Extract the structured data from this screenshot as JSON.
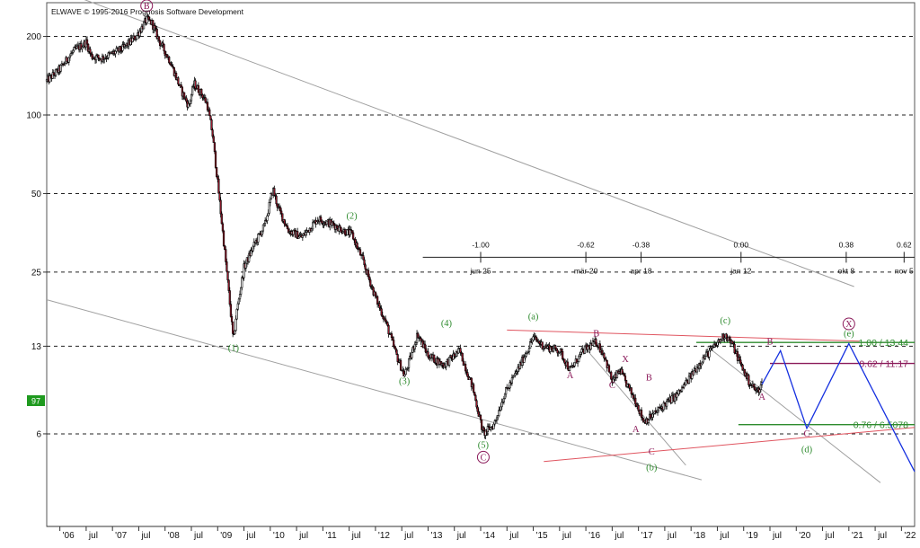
{
  "copyright": "ELWAVE © 1995-2016 Prognosis Software Development",
  "last_price_badge": "97",
  "colors": {
    "up_candle": "#ffffff",
    "down_candle": "#9a1a2e",
    "wick": "#000000",
    "wave_green": "#2e8b2e",
    "wave_purple": "#8b1a5a",
    "projection_blue": "#1530e0",
    "channel_red": "#e05560",
    "channel_gray": "#a0a0a0",
    "fib_green": "#2e8b2e",
    "fib_purple": "#8b1a5a",
    "badge_green": "#1f9a1f"
  },
  "chart_data": {
    "type": "candlestick",
    "y_scale": "log",
    "ylim": [
      3,
      300
    ],
    "y_ticks": [
      200,
      100,
      50,
      25,
      13,
      6
    ],
    "x_start": 2005.75,
    "x_end": 2022.25,
    "x_tick_labels": [
      {
        "t": 2006.0,
        "label": "'06"
      },
      {
        "t": 2006.5,
        "label": "jul"
      },
      {
        "t": 2007.0,
        "label": "'07"
      },
      {
        "t": 2007.5,
        "label": "jul"
      },
      {
        "t": 2008.0,
        "label": "'08"
      },
      {
        "t": 2008.5,
        "label": "jul"
      },
      {
        "t": 2009.0,
        "label": "'09"
      },
      {
        "t": 2009.5,
        "label": "jul"
      },
      {
        "t": 2010.0,
        "label": "'10"
      },
      {
        "t": 2010.5,
        "label": "jul"
      },
      {
        "t": 2011.0,
        "label": "'11"
      },
      {
        "t": 2011.5,
        "label": "jul"
      },
      {
        "t": 2012.0,
        "label": "'12"
      },
      {
        "t": 2012.5,
        "label": "jul"
      },
      {
        "t": 2013.0,
        "label": "'13"
      },
      {
        "t": 2013.5,
        "label": "jul"
      },
      {
        "t": 2014.0,
        "label": "'14"
      },
      {
        "t": 2014.5,
        "label": "jul"
      },
      {
        "t": 2015.0,
        "label": "'15"
      },
      {
        "t": 2015.5,
        "label": "jul"
      },
      {
        "t": 2016.0,
        "label": "'16"
      },
      {
        "t": 2016.5,
        "label": "jul"
      },
      {
        "t": 2017.0,
        "label": "'17"
      },
      {
        "t": 2017.5,
        "label": "jul"
      },
      {
        "t": 2018.0,
        "label": "'18"
      },
      {
        "t": 2018.5,
        "label": "jul"
      },
      {
        "t": 2019.0,
        "label": "'19"
      },
      {
        "t": 2019.5,
        "label": "jul"
      },
      {
        "t": 2020.0,
        "label": "'20"
      },
      {
        "t": 2020.5,
        "label": "jul"
      },
      {
        "t": 2021.0,
        "label": "'21"
      },
      {
        "t": 2021.5,
        "label": "jul"
      },
      {
        "t": 2022.0,
        "label": "'22"
      }
    ],
    "price_path": [
      [
        2005.75,
        135
      ],
      [
        2006.0,
        150
      ],
      [
        2006.25,
        175
      ],
      [
        2006.5,
        190
      ],
      [
        2006.6,
        168
      ],
      [
        2006.8,
        165
      ],
      [
        2007.0,
        172
      ],
      [
        2007.2,
        180
      ],
      [
        2007.45,
        200
      ],
      [
        2007.65,
        232
      ],
      [
        2007.75,
        225
      ],
      [
        2007.9,
        190
      ],
      [
        2008.1,
        160
      ],
      [
        2008.3,
        125
      ],
      [
        2008.45,
        108
      ],
      [
        2008.55,
        132
      ],
      [
        2008.7,
        120
      ],
      [
        2008.8,
        110
      ],
      [
        2008.9,
        85
      ],
      [
        2009.0,
        55
      ],
      [
        2009.1,
        35
      ],
      [
        2009.2,
        22
      ],
      [
        2009.3,
        13.5
      ],
      [
        2009.35,
        17
      ],
      [
        2009.5,
        26
      ],
      [
        2009.7,
        32
      ],
      [
        2009.9,
        38
      ],
      [
        2010.05,
        52
      ],
      [
        2010.15,
        44
      ],
      [
        2010.35,
        36
      ],
      [
        2010.6,
        34
      ],
      [
        2010.9,
        40
      ],
      [
        2011.2,
        38
      ],
      [
        2011.4,
        36
      ],
      [
        2011.55,
        35
      ],
      [
        2011.75,
        28
      ],
      [
        2012.0,
        20
      ],
      [
        2012.2,
        16
      ],
      [
        2012.4,
        12
      ],
      [
        2012.55,
        10
      ],
      [
        2012.65,
        11.5
      ],
      [
        2012.8,
        14.5
      ],
      [
        2013.0,
        12
      ],
      [
        2013.3,
        11
      ],
      [
        2013.6,
        12.5
      ],
      [
        2013.85,
        9
      ],
      [
        2014.05,
        6
      ],
      [
        2014.25,
        6.5
      ],
      [
        2014.45,
        8.5
      ],
      [
        2014.7,
        10.5
      ],
      [
        2015.0,
        14
      ],
      [
        2015.2,
        13
      ],
      [
        2015.5,
        12.5
      ],
      [
        2015.7,
        10.5
      ],
      [
        2015.95,
        12.5
      ],
      [
        2016.2,
        13.5
      ],
      [
        2016.35,
        12
      ],
      [
        2016.5,
        9.5
      ],
      [
        2016.65,
        10.5
      ],
      [
        2016.75,
        9.5
      ],
      [
        2016.95,
        8
      ],
      [
        2017.1,
        6.7
      ],
      [
        2017.25,
        7
      ],
      [
        2017.5,
        7.8
      ],
      [
        2017.75,
        8.5
      ],
      [
        2018.0,
        10
      ],
      [
        2018.2,
        11.5
      ],
      [
        2018.45,
        13
      ],
      [
        2018.65,
        14.5
      ],
      [
        2018.8,
        13
      ],
      [
        2018.95,
        11
      ],
      [
        2019.1,
        9.5
      ],
      [
        2019.25,
        8.7
      ],
      [
        2019.35,
        9.3
      ]
    ],
    "wave_labels": [
      {
        "text": "B",
        "t": 2007.65,
        "v": 255,
        "color": "purple",
        "circled": true,
        "size": "large"
      },
      {
        "text": "(1)",
        "t": 2009.3,
        "v": 12.5,
        "color": "green"
      },
      {
        "text": "(2)",
        "t": 2011.55,
        "v": 40,
        "color": "green"
      },
      {
        "text": "(3)",
        "t": 2012.55,
        "v": 9.3,
        "color": "green"
      },
      {
        "text": "(4)",
        "t": 2013.35,
        "v": 15.5,
        "color": "green"
      },
      {
        "text": "(5)",
        "t": 2014.05,
        "v": 5.3,
        "color": "green"
      },
      {
        "text": "C",
        "t": 2014.05,
        "v": 4.75,
        "color": "purple",
        "circled": true,
        "size": "large"
      },
      {
        "text": "(a)",
        "t": 2015.0,
        "v": 16.5,
        "color": "green"
      },
      {
        "text": "A",
        "t": 2015.7,
        "v": 9.8,
        "color": "purple"
      },
      {
        "text": "B",
        "t": 2016.2,
        "v": 14.2,
        "color": "purple"
      },
      {
        "text": "C",
        "t": 2016.5,
        "v": 9.0,
        "color": "purple"
      },
      {
        "text": "X",
        "t": 2016.75,
        "v": 11.3,
        "color": "purple"
      },
      {
        "text": "B",
        "t": 2017.2,
        "v": 9.6,
        "color": "purple"
      },
      {
        "text": "A",
        "t": 2016.95,
        "v": 6.1,
        "color": "purple"
      },
      {
        "text": "C",
        "t": 2017.25,
        "v": 5.0,
        "color": "purple"
      },
      {
        "text": "(b)",
        "t": 2017.25,
        "v": 4.35,
        "color": "green"
      },
      {
        "text": "(c)",
        "t": 2018.65,
        "v": 15.9,
        "color": "green"
      },
      {
        "text": "B",
        "t": 2019.5,
        "v": 13.2,
        "color": "purple"
      },
      {
        "text": "A",
        "t": 2019.35,
        "v": 8.1,
        "color": "purple"
      },
      {
        "text": "C",
        "t": 2020.2,
        "v": 5.85,
        "color": "purple"
      },
      {
        "text": "(d)",
        "t": 2020.2,
        "v": 5.1,
        "color": "green"
      },
      {
        "text": "(e)",
        "t": 2021.0,
        "v": 14.2,
        "color": "green"
      },
      {
        "text": "X",
        "t": 2021.0,
        "v": 15.4,
        "color": "purple",
        "circled": true,
        "size": "large"
      }
    ],
    "projection_path": [
      [
        2019.35,
        9.3
      ],
      [
        2019.7,
        12.5
      ],
      [
        2020.2,
        6.3
      ],
      [
        2021.0,
        13.3
      ],
      [
        2022.25,
        4.3
      ]
    ],
    "channel_lines": [
      {
        "color": "gray",
        "points": [
          [
            2006.0,
            300
          ],
          [
            2021.1,
            22.0
          ]
        ]
      },
      {
        "color": "gray",
        "points": [
          [
            2005.75,
            19.6
          ],
          [
            2018.2,
            4.0
          ]
        ]
      },
      {
        "color": "gray",
        "points": [
          [
            2016.0,
            12.7
          ],
          [
            2017.9,
            4.55
          ]
        ]
      },
      {
        "color": "gray",
        "points": [
          [
            2018.3,
            13.0
          ],
          [
            2021.6,
            3.9
          ]
        ]
      },
      {
        "color": "red",
        "points": [
          [
            2014.5,
            15.0
          ],
          [
            2021.2,
            13.6
          ]
        ]
      },
      {
        "color": "red",
        "points": [
          [
            2015.2,
            4.7
          ],
          [
            2022.25,
            6.35
          ]
        ]
      }
    ],
    "fib_levels": [
      {
        "value": 13.44,
        "label": "1.00 / 13.44",
        "color": "green",
        "t_from": 2018.1,
        "t_to": 2022.25
      },
      {
        "value": 11.17,
        "label": "0.62 / 11.17",
        "color": "purple",
        "t_from": 2019.5,
        "t_to": 2022.25
      },
      {
        "value": 6.5078,
        "label": "0.76 / 6.5078",
        "color": "green",
        "t_from": 2018.9,
        "t_to": 2022.25
      }
    ],
    "time_ruler": {
      "y_value": 28.5,
      "t_from": 2012.9,
      "t_to": 2022.25,
      "ticks": [
        {
          "t": 2014.0,
          "ratio": "-1.00",
          "date": "jun 25"
        },
        {
          "t": 2016.0,
          "ratio": "-0.62",
          "date": "mär 20"
        },
        {
          "t": 2017.05,
          "ratio": "-0.38",
          "date": "apr 18"
        },
        {
          "t": 2018.95,
          "ratio": "0.00",
          "date": "jan 12"
        },
        {
          "t": 2020.95,
          "ratio": "0.38",
          "date": "okt 8"
        },
        {
          "t": 2022.05,
          "ratio": "0.62",
          "date": "nov 5"
        }
      ]
    }
  }
}
